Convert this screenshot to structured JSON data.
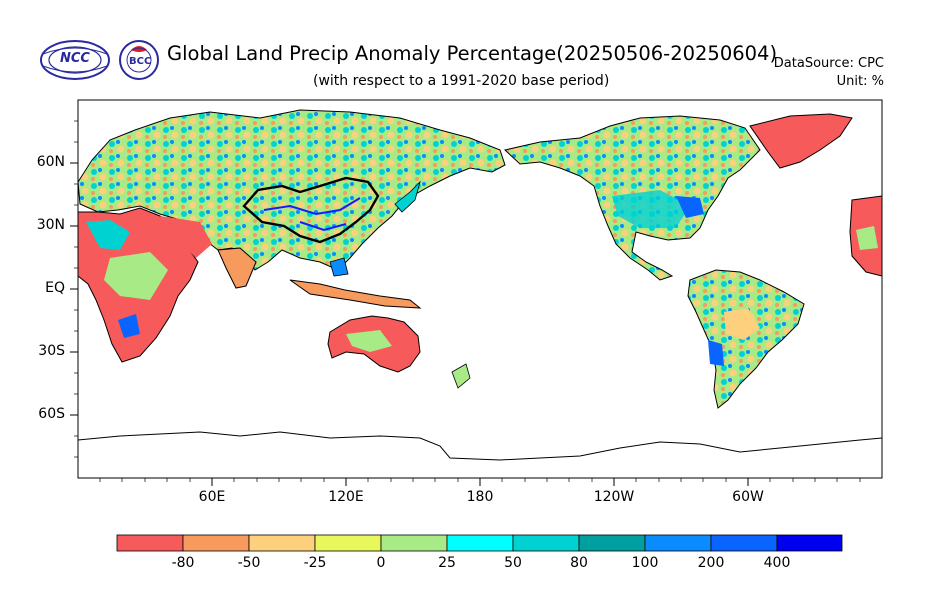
{
  "title": "Global Land Precip Anomaly Percentage(20250506-20250604)",
  "subtitle": "(with respect to a 1991-2020 base period)",
  "data_source": "DataSource:  CPC",
  "unit": "Unit:  %",
  "logos": [
    {
      "icon": "ncc-logo",
      "text": "NCC"
    },
    {
      "icon": "bcc-logo",
      "text": "BCC"
    }
  ],
  "map": {
    "projection": "cylindrical-equidistant",
    "center_longitude": 180,
    "lat_labels": [
      "60N",
      "30N",
      "EQ",
      "30S",
      "60S"
    ],
    "lon_labels": [
      "60E",
      "120E",
      "180",
      "120W",
      "60W"
    ],
    "ocean_color": "#ffffff",
    "border_color": "#000000",
    "river_color": "#1a1aff"
  },
  "colorbar": {
    "labels": [
      "-80",
      "-50",
      "-25",
      "0",
      "25",
      "50",
      "80",
      "100",
      "200",
      "400"
    ],
    "colors": [
      "#f75a5a",
      "#f79a5e",
      "#fcd07c",
      "#e8f85c",
      "#a8ea86",
      "#00ffff",
      "#00d2d2",
      "#00a0a0",
      "#0a8cff",
      "#0a64ff",
      "#0000f0"
    ]
  }
}
